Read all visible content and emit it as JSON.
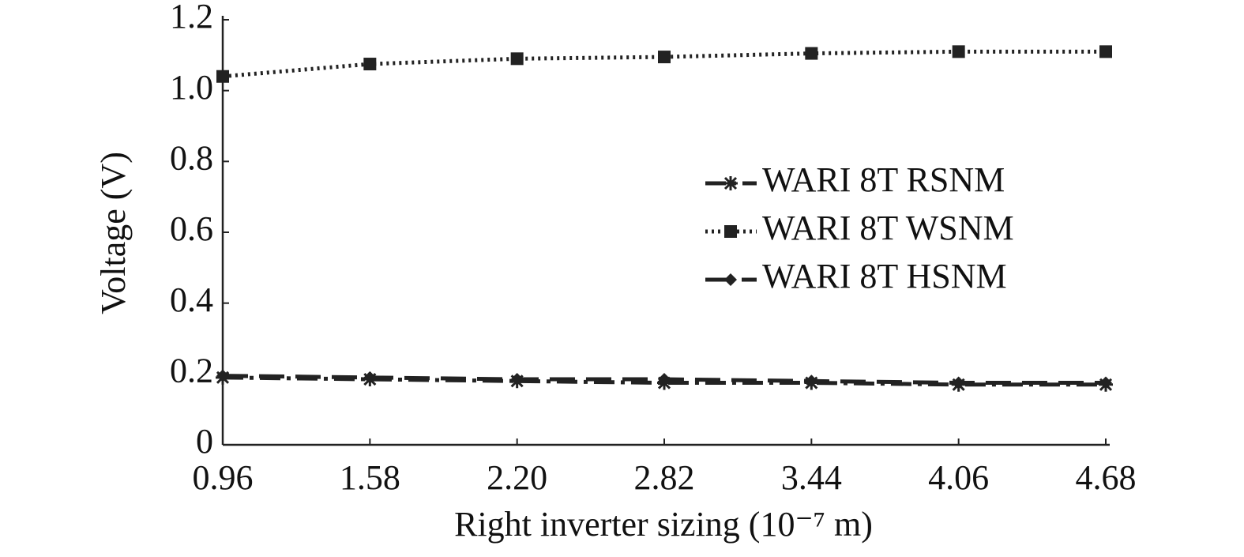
{
  "chart_data": {
    "type": "line",
    "x_label": "Right inverter sizing (10⁻⁷ m)",
    "y_label": "Voltage (V)",
    "x": [
      0.96,
      1.58,
      2.2,
      2.82,
      3.44,
      4.06,
      4.68
    ],
    "xlim": [
      0.96,
      4.68
    ],
    "xticks": [
      0.96,
      1.58,
      {
        "value": 2.2,
        "label": "2.20"
      },
      2.82,
      3.44,
      4.06,
      4.68
    ],
    "ylim": [
      0,
      1.2
    ],
    "yticks": [
      0,
      0.2,
      0.4,
      0.6,
      0.8,
      {
        "value": 1,
        "label": "1.0"
      },
      1.2
    ],
    "legend": "right",
    "series": [
      {
        "name": "WARI 8T RSNM",
        "color": "#222222",
        "linestyle": "dashdot",
        "marker": "star",
        "values": [
          0.19,
          0.185,
          0.18,
          0.175,
          0.175,
          0.17,
          0.17
        ]
      },
      {
        "name": "WARI 8T WSNM",
        "color": "#222222",
        "linestyle": "dotted",
        "marker": "square",
        "values": [
          1.04,
          1.075,
          1.09,
          1.095,
          1.105,
          1.11,
          1.11
        ]
      },
      {
        "name": "WARI 8T HSNM",
        "color": "#222222",
        "linestyle": "dashed",
        "marker": "diamond",
        "values": [
          0.195,
          0.19,
          0.185,
          0.185,
          0.18,
          0.175,
          0.175
        ]
      }
    ]
  }
}
